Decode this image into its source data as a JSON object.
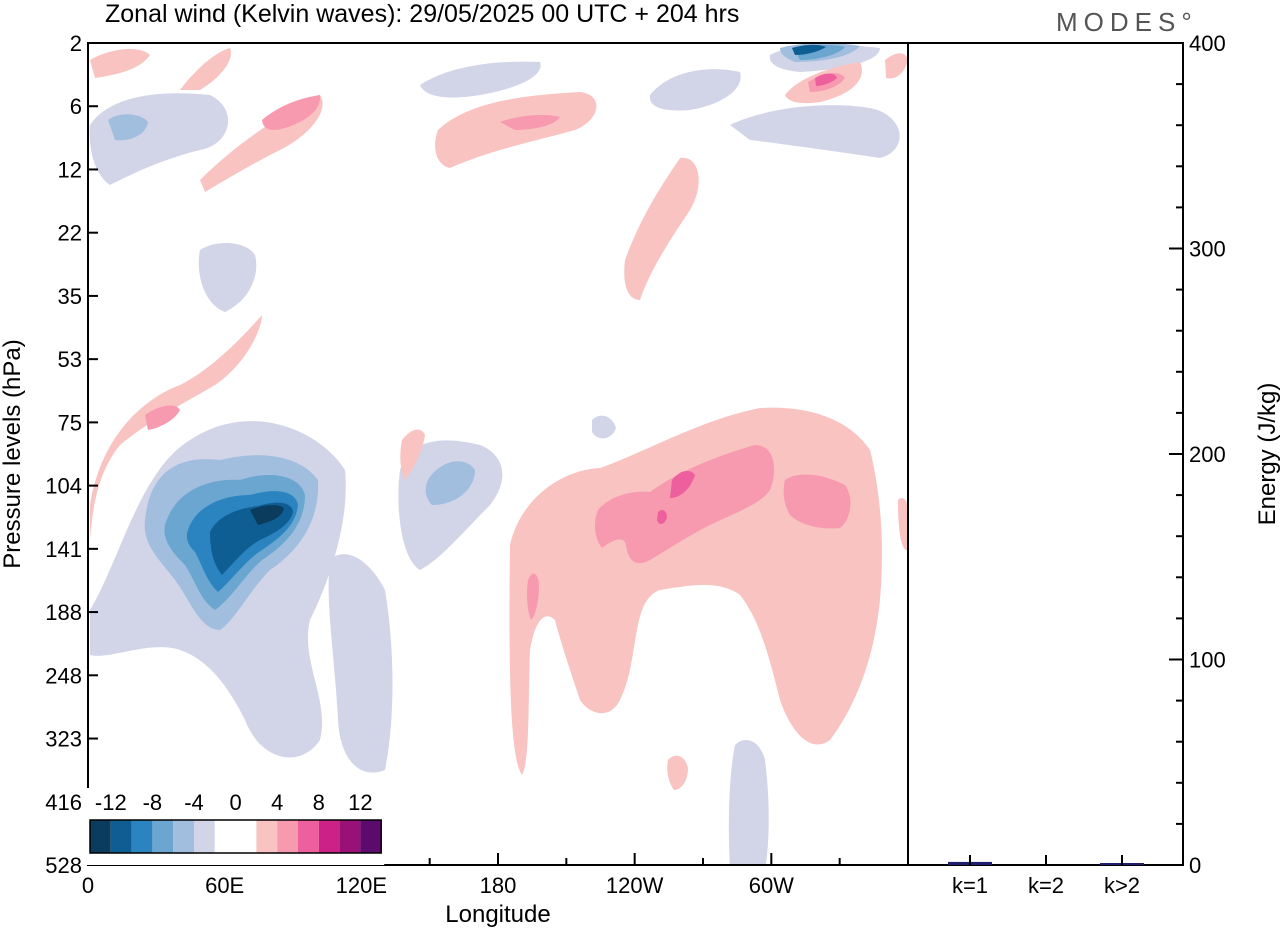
{
  "chart_data": [
    {
      "type": "heatmap",
      "title": "Zonal wind (Kelvin waves):  29/05/2025  00 UTC  + 204 hrs",
      "xlabel": "Longitude",
      "ylabel": "Pressure levels (hPa)",
      "x_ticks": [
        "0",
        "60E",
        "120E",
        "180",
        "120W",
        "60W"
      ],
      "x_tick_degrees": [
        0,
        60,
        120,
        180,
        240,
        300
      ],
      "x_range_degrees": [
        0,
        360
      ],
      "y_ticks": [
        "2",
        "6",
        "12",
        "22",
        "35",
        "53",
        "75",
        "104",
        "141",
        "188",
        "248",
        "323",
        "416",
        "528"
      ],
      "colorbar": {
        "labels": [
          "-12",
          "-8",
          "-4",
          "0",
          "4",
          "8",
          "12"
        ],
        "colors": [
          "#0b3c5d",
          "#0f5e93",
          "#2b84c0",
          "#6aa6d0",
          "#a2bede",
          "#d2d5e8",
          "#ffffff",
          "#ffffff",
          "#f8c3c1",
          "#f79ab0",
          "#ee5f9d",
          "#cc2288",
          "#991177",
          "#5c0a6e"
        ]
      },
      "features": [
        {
          "sign": "negative",
          "level": -12,
          "lon": 55,
          "pressure": 141
        },
        {
          "sign": "positive",
          "level": 8,
          "lon": 257,
          "pressure": 115
        },
        {
          "sign": "negative",
          "level": -8,
          "lon": 303,
          "pressure": 2
        },
        {
          "sign": "positive",
          "level": 4,
          "lon": 190,
          "pressure": 7
        }
      ]
    },
    {
      "type": "bar",
      "categories": [
        "k=1",
        "k=2",
        "k>2"
      ],
      "values": [
        1.5,
        0,
        0.5
      ],
      "ylabel": "Energy (J/kg)",
      "ylim": [
        0,
        400
      ],
      "y_ticks": [
        "0",
        "100",
        "200",
        "300",
        "400"
      ],
      "bar_color": "#1f1f6e"
    }
  ],
  "brand": "MODES°"
}
